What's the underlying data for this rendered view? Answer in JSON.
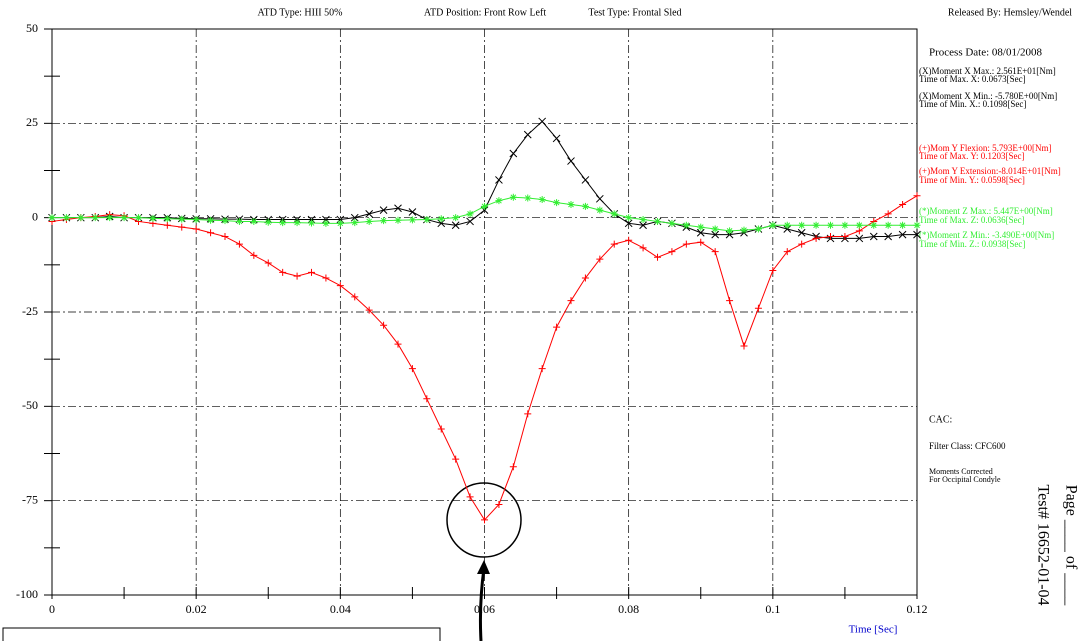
{
  "chart_data": {
    "type": "line",
    "header": [
      "ATD Type:  HIII 50%",
      "ATD Position:  Front Row Left",
      "Test Type: Frontal Sled",
      "Released By: Hemsley/Wendel"
    ],
    "x_label": "Time  [Sec]",
    "x": [
      0,
      0.002,
      0.004,
      0.006,
      0.008,
      0.01,
      0.012,
      0.014,
      0.016,
      0.018,
      0.02,
      0.022,
      0.024,
      0.026,
      0.028,
      0.03,
      0.032,
      0.034,
      0.036,
      0.038,
      0.04,
      0.042,
      0.044,
      0.046,
      0.048,
      0.05,
      0.052,
      0.054,
      0.056,
      0.058,
      0.06,
      0.062,
      0.064,
      0.066,
      0.068,
      0.07,
      0.072,
      0.074,
      0.076,
      0.078,
      0.08,
      0.082,
      0.084,
      0.086,
      0.088,
      0.09,
      0.092,
      0.094,
      0.096,
      0.098,
      0.1,
      0.102,
      0.104,
      0.106,
      0.108,
      0.11,
      0.112,
      0.114,
      0.116,
      0.118,
      0.12
    ],
    "series": [
      {
        "color": "#000000",
        "marker": "x",
        "values": [
          0,
          0,
          0,
          0,
          0.3,
          0,
          0,
          0,
          0,
          -0.2,
          -0.3,
          -0.3,
          -0.4,
          -0.4,
          -0.5,
          -0.5,
          -0.5,
          -0.5,
          -0.5,
          -0.5,
          -0.5,
          0,
          1,
          2,
          2.5,
          1.5,
          -0.5,
          -1.5,
          -2,
          -1,
          2,
          10,
          17,
          22,
          25.5,
          21,
          15,
          10,
          5,
          1,
          -1.5,
          -2,
          -1,
          -1.5,
          -2.5,
          -4,
          -4.5,
          -4.5,
          -4,
          -3,
          -2,
          -3,
          -4,
          -5,
          -5.5,
          -5.5,
          -5.5,
          -5,
          -5,
          -4.5,
          -4.5
        ]
      },
      {
        "color": "#ff0000",
        "marker": "+",
        "values": [
          -1,
          -0.5,
          0,
          0.3,
          0.8,
          0.5,
          -1,
          -1.5,
          -2,
          -2.5,
          -3,
          -4,
          -5,
          -7,
          -10,
          -12,
          -14.5,
          -15.5,
          -14.5,
          -16,
          -18,
          -21,
          -24.5,
          -28.5,
          -33.5,
          -40,
          -48,
          -56,
          -64,
          -74,
          -80.1,
          -76,
          -66,
          -52,
          -40,
          -29,
          -22,
          -16,
          -11,
          -7,
          -6,
          -8,
          -10.5,
          -9,
          -7,
          -6.5,
          -9,
          -22,
          -34,
          -24,
          -14,
          -9,
          -7,
          -5.5,
          -5,
          -5,
          -3.5,
          -1,
          1,
          3.5,
          5.8
        ]
      },
      {
        "color": "#33ee33",
        "marker": "*",
        "values": [
          0,
          0,
          0,
          0,
          0,
          0,
          0,
          -0.2,
          -0.3,
          -0.4,
          -0.5,
          -0.7,
          -0.8,
          -1,
          -1,
          -1.2,
          -1.3,
          -1.3,
          -1.4,
          -1.5,
          -1.5,
          -1.3,
          -1,
          -0.8,
          -0.7,
          -0.6,
          -0.5,
          -0.3,
          0,
          1,
          3,
          4.5,
          5.4,
          5.2,
          4.8,
          4,
          3.5,
          3,
          2,
          1,
          0,
          -0.5,
          -1,
          -1.5,
          -2,
          -2.5,
          -3,
          -3.5,
          -3.3,
          -3,
          -2,
          -2,
          -2,
          -2,
          -2,
          -2,
          -2,
          -2,
          -2,
          -2,
          -2
        ]
      }
    ],
    "xlim": [
      0,
      0.12
    ],
    "xticks": [
      0,
      0.02,
      0.04,
      0.06,
      0.08,
      0.1,
      0.12
    ],
    "xminorticks": [
      0.01,
      0.03,
      0.05,
      0.07,
      0.09,
      0.11
    ],
    "ylim": [
      -100,
      50
    ],
    "yticks": [
      50,
      25,
      0,
      -25,
      -50,
      -75,
      -100
    ],
    "yminorticks": [
      37.5,
      12.5,
      -12.5,
      -37.5,
      -62.5,
      -87.5
    ],
    "grid": true,
    "annotations": [
      {
        "text": "Process Date:   08/01/2008",
        "color": "#000000"
      },
      {
        "text": "(X)Moment X Max.:   2.561E+01[Nm]",
        "color": "#000000"
      },
      {
        "text": "Time of Max. X:  0.0673[Sec]",
        "color": "#000000"
      },
      {
        "text": "(X)Moment X Min.:  -5.780E+00[Nm]",
        "color": "#000000"
      },
      {
        "text": "Time of Min. X.:  0.1098[Sec]",
        "color": "#000000"
      },
      {
        "text": "(+)Mom Y Flexion: 5.793E+00[Nm]",
        "color": "#ff0000"
      },
      {
        "text": "Time of Max. Y:  0.1203[Sec]",
        "color": "#ff0000"
      },
      {
        "text": "(+)Mom Y Extension:-8.014E+01[Nm]",
        "color": "#ff0000"
      },
      {
        "text": "Time of Min. Y.:  0.0598[Sec]",
        "color": "#ff0000"
      },
      {
        "text": "(*)Moment Z Max.:   5.447E+00[Nm]",
        "color": "#33ee33"
      },
      {
        "text": "Time of Max. Z:  0.0636[Sec]",
        "color": "#33ee33"
      },
      {
        "text": "(*)Moment Z Min.:  -3.490E+00[Nm]",
        "color": "#33ee33"
      },
      {
        "text": "Time of Min. Z.:  0.0938[Sec]",
        "color": "#33ee33"
      },
      {
        "text": "CAC:",
        "color": "#000000"
      },
      {
        "text": "Filter Class:   CFC600",
        "color": "#000000"
      },
      {
        "text": "Moments Corrected",
        "color": "#000000"
      },
      {
        "text": "For Occipital Condyle",
        "color": "#000000"
      }
    ],
    "page_text": "Page ____ of ____",
    "test_id": "Test# 16652-01-04"
  }
}
